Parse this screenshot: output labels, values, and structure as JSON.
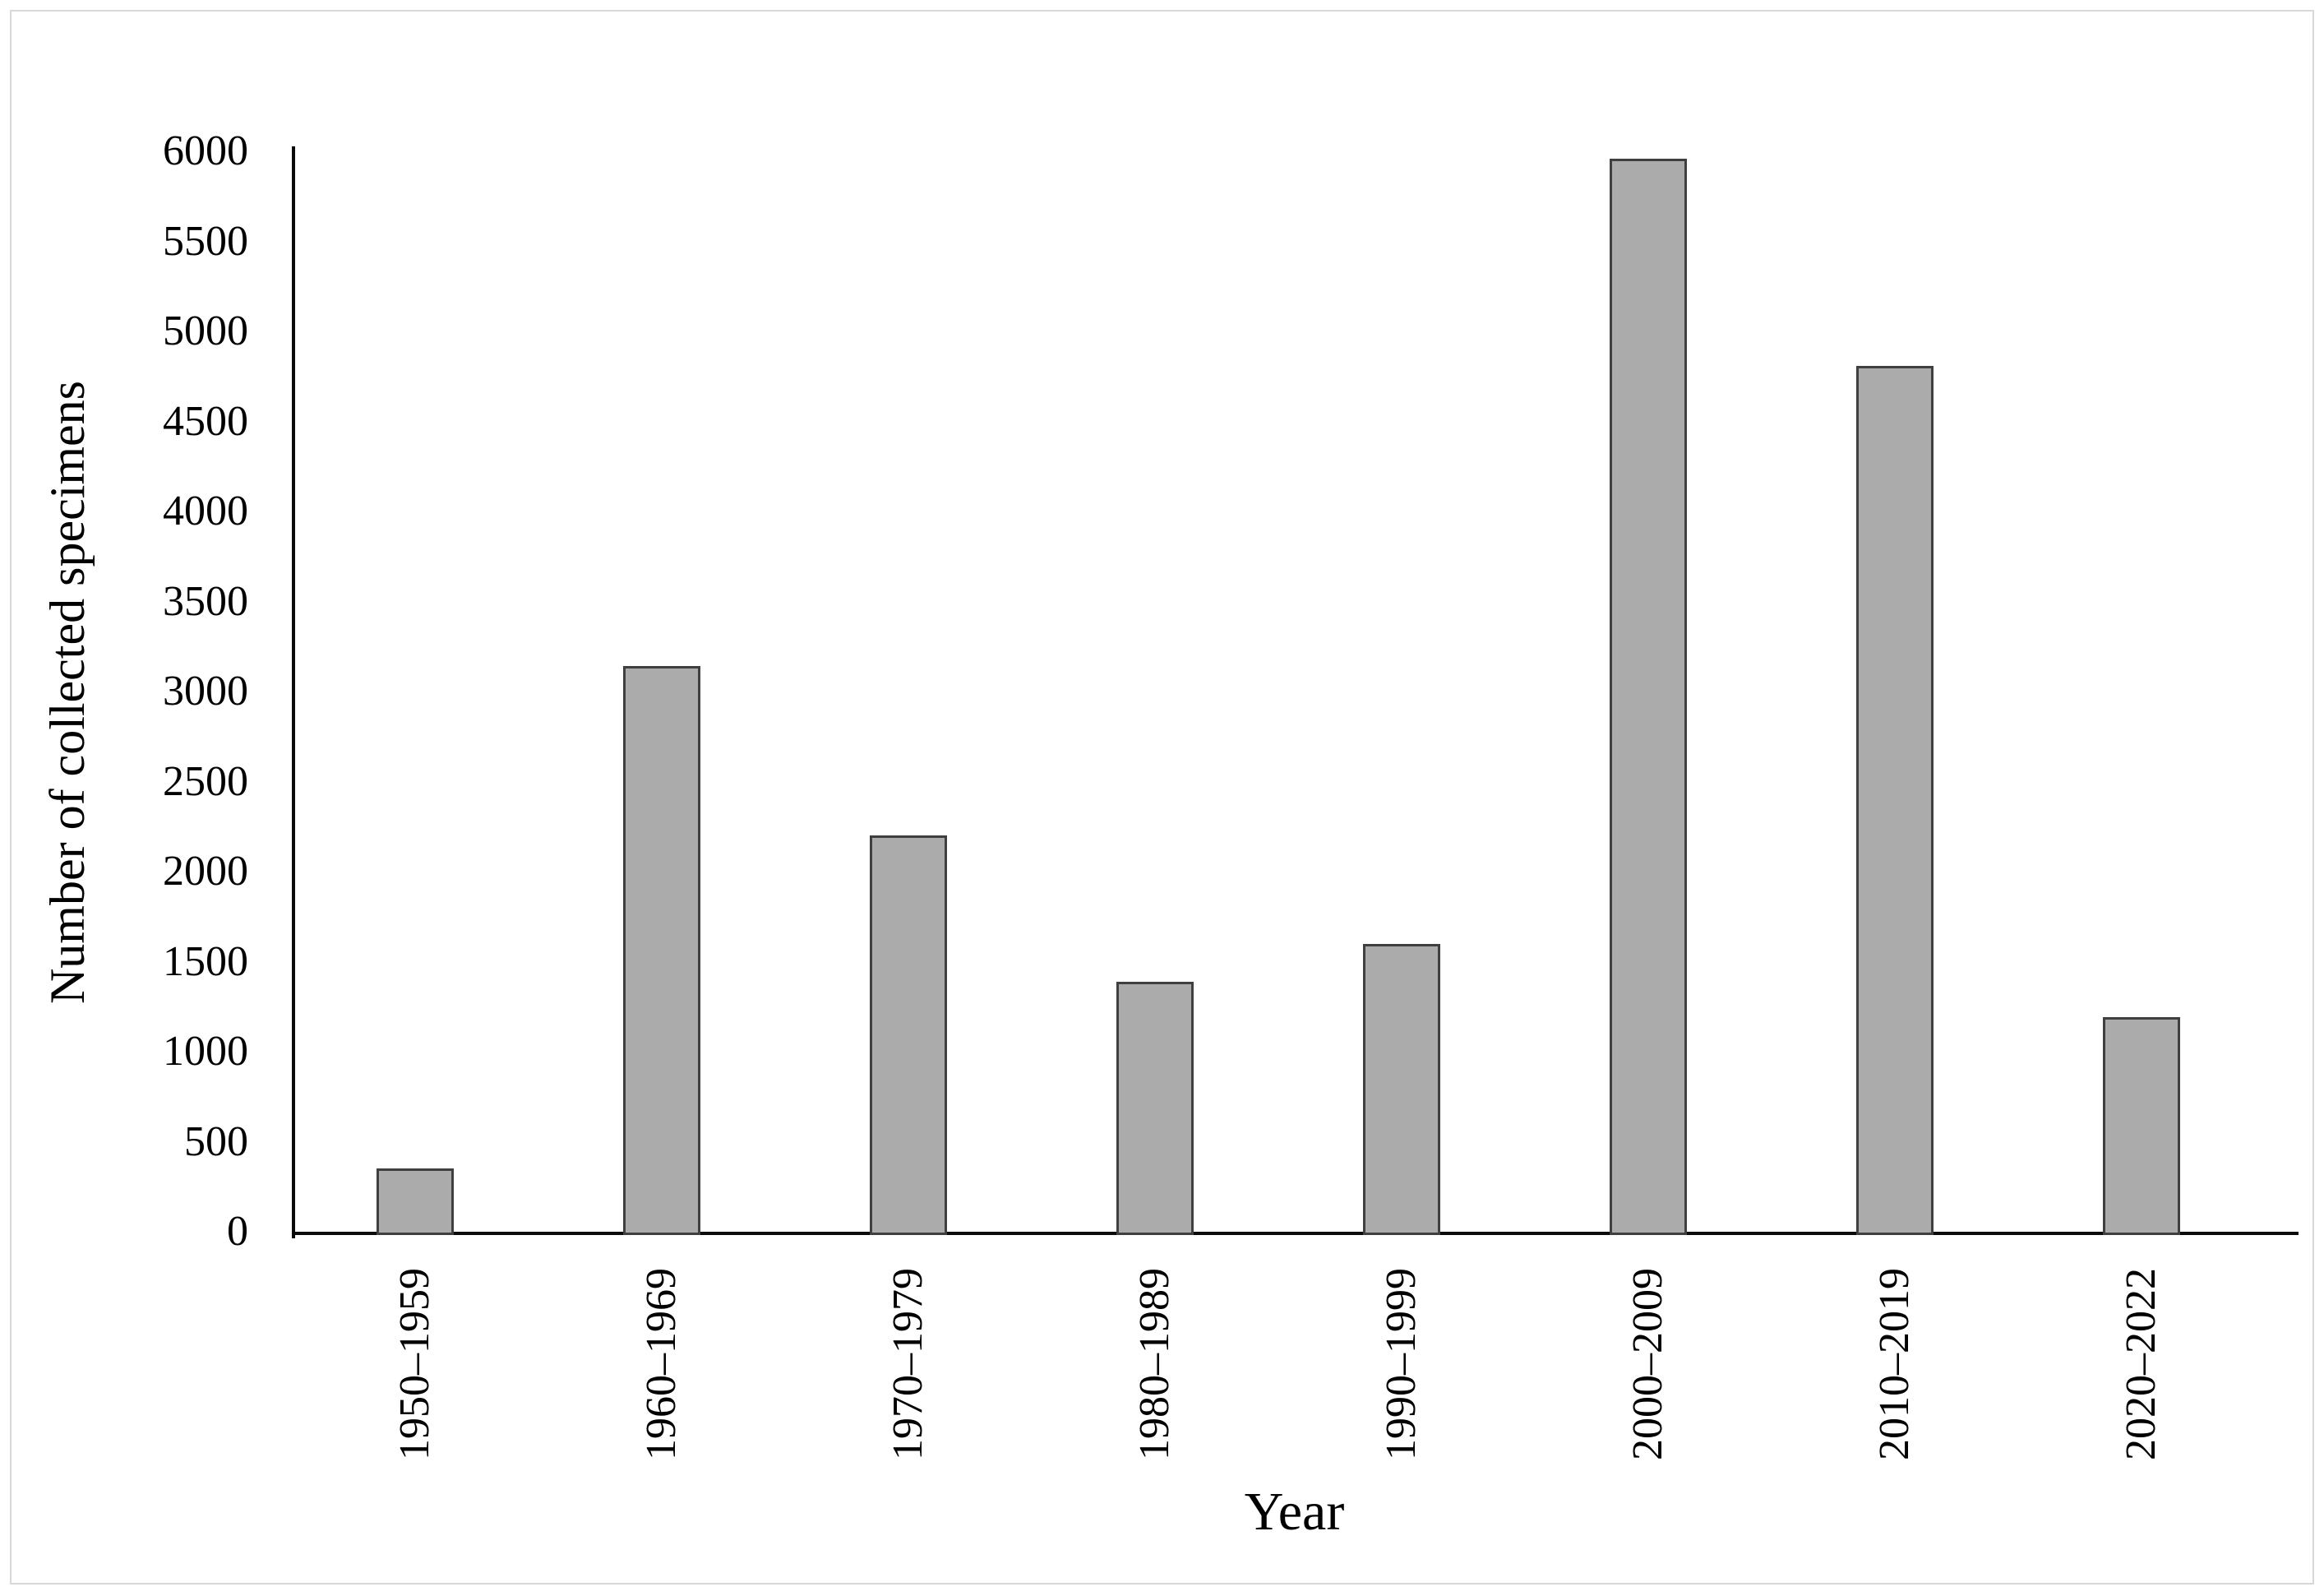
{
  "figure": {
    "background": "#FFFFFF",
    "frame_border_color": "#D8D8D8"
  },
  "chart_data": {
    "type": "bar",
    "title": "",
    "categories": [
      "1950–1959",
      "1960–1969",
      "1970–1979",
      "1980–1989",
      "1990–1999",
      "2000–2009",
      "2010–2019",
      "2020–2022"
    ],
    "values": [
      350,
      3140,
      2200,
      1390,
      1600,
      5960,
      4810,
      1190
    ],
    "xlabel": "Year",
    "ylabel": "Number of collected specimens",
    "ylim": [
      0,
      6000
    ],
    "ytick_step": 500,
    "ytick_labels": [
      "0",
      "500",
      "1000",
      "1500",
      "2000",
      "2500",
      "3000",
      "3500",
      "4000",
      "4500",
      "5000",
      "5500",
      "6000"
    ],
    "grid": false,
    "legend": null,
    "bar_fill": "#ABABAB",
    "bar_border": "#3F3F3F",
    "axis_color": "#0A0A0A",
    "text_color": "#000000"
  }
}
